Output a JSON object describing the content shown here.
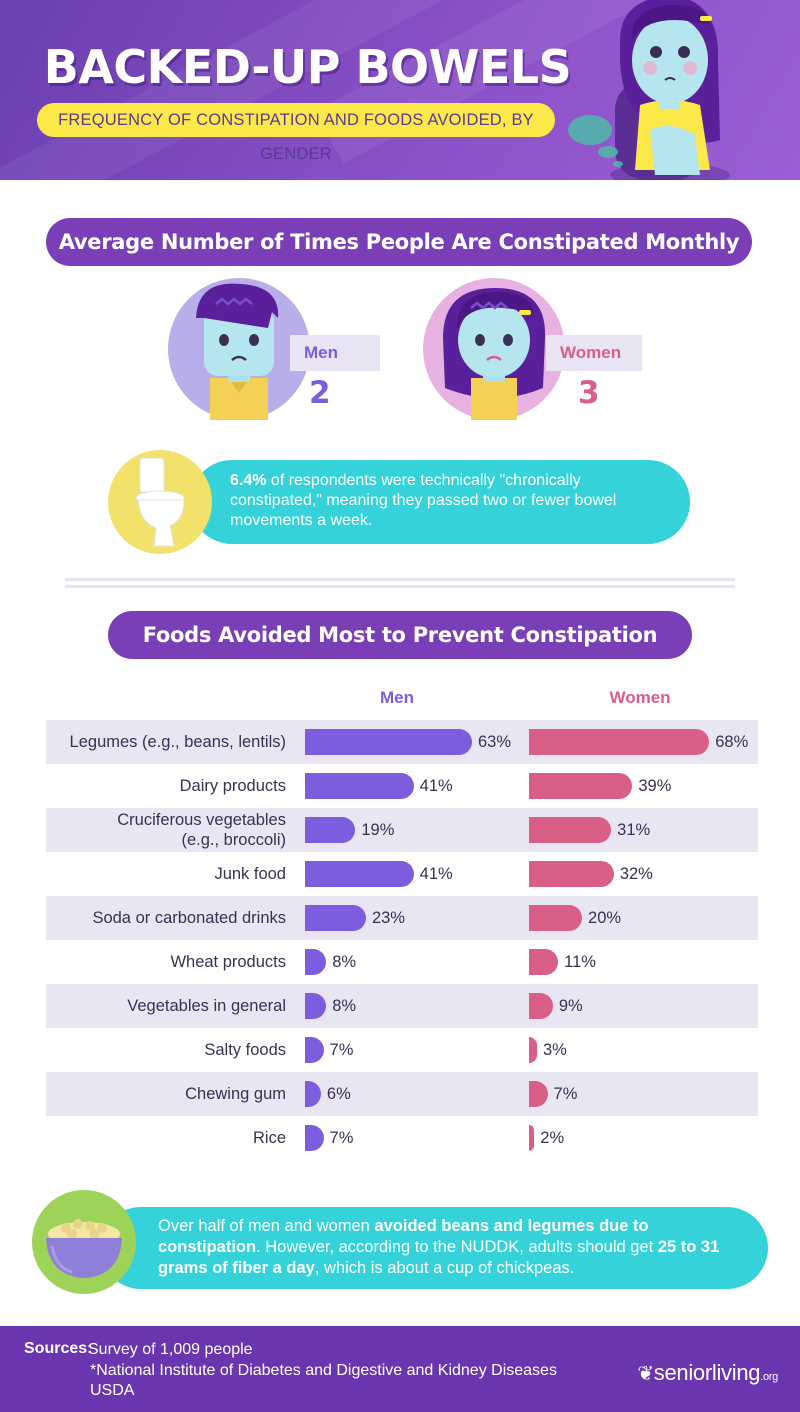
{
  "header": {
    "title": "BACKED-UP BOWELS",
    "subtitle": "FREQUENCY OF CONSTIPATION AND FOODS AVOIDED, BY GENDER"
  },
  "section1": {
    "title": "Average Number of Times People Are Constipated Monthly",
    "men": {
      "label": "Men",
      "value": "2"
    },
    "women": {
      "label": "Women",
      "value": "3"
    },
    "callout": {
      "highlight": "6.4%",
      "text": " of respondents were technically \"chronically constipated,\" meaning they passed two or fewer bowel movements a week."
    }
  },
  "section2": {
    "title": "Foods Avoided Most to Prevent Constipation"
  },
  "chart_data": {
    "type": "bar",
    "orientation": "horizontal",
    "title": "Foods Avoided Most to Prevent Constipation",
    "unit": "%",
    "categories": [
      "Legumes (e.g., beans, lentils)",
      "Dairy products",
      "Cruciferous vegetables (e.g., broccoli)",
      "Junk food",
      "Soda or carbonated drinks",
      "Wheat products",
      "Vegetables in general",
      "Salty foods",
      "Chewing gum",
      "Rice"
    ],
    "series": [
      {
        "name": "Men",
        "color": "#7d5cdd",
        "values": [
          63,
          41,
          19,
          41,
          23,
          8,
          8,
          7,
          6,
          7
        ]
      },
      {
        "name": "Women",
        "color": "#d95f87",
        "values": [
          68,
          39,
          31,
          32,
          20,
          11,
          9,
          3,
          7,
          2
        ]
      }
    ],
    "value_labels": {
      "men": [
        "63%",
        "41%",
        "19%",
        "41%",
        "23%",
        "8%",
        "8%",
        "7%",
        "6%",
        "7%"
      ],
      "women": [
        "68%",
        "39%",
        "31%",
        "32%",
        "20%",
        "11%",
        "9%",
        "3%",
        "7%",
        "2%"
      ]
    },
    "xlim": [
      0,
      70
    ]
  },
  "bottom_callout": {
    "part1": "Over half of men and women ",
    "bold1": "avoided beans and legumes due to constipation",
    "part2": ". However, according to the NUDDK, adults should get ",
    "bold2": "25 to 31 grams of fiber a day",
    "part3": ", which is about a cup of chickpeas."
  },
  "footer": {
    "sources_label": "Sources:",
    "sources": [
      "Survey of 1,009 people",
      "*National Institute of Diabetes and Digestive and Kidney Diseases",
      "USDA"
    ],
    "brand_main": "seniorliving",
    "brand_suffix": ".org"
  },
  "colors": {
    "purple": "#7a3fb6",
    "men": "#7d5cdd",
    "women": "#d95f87",
    "teal": "#36d2d9",
    "yellow": "#fde84a"
  }
}
